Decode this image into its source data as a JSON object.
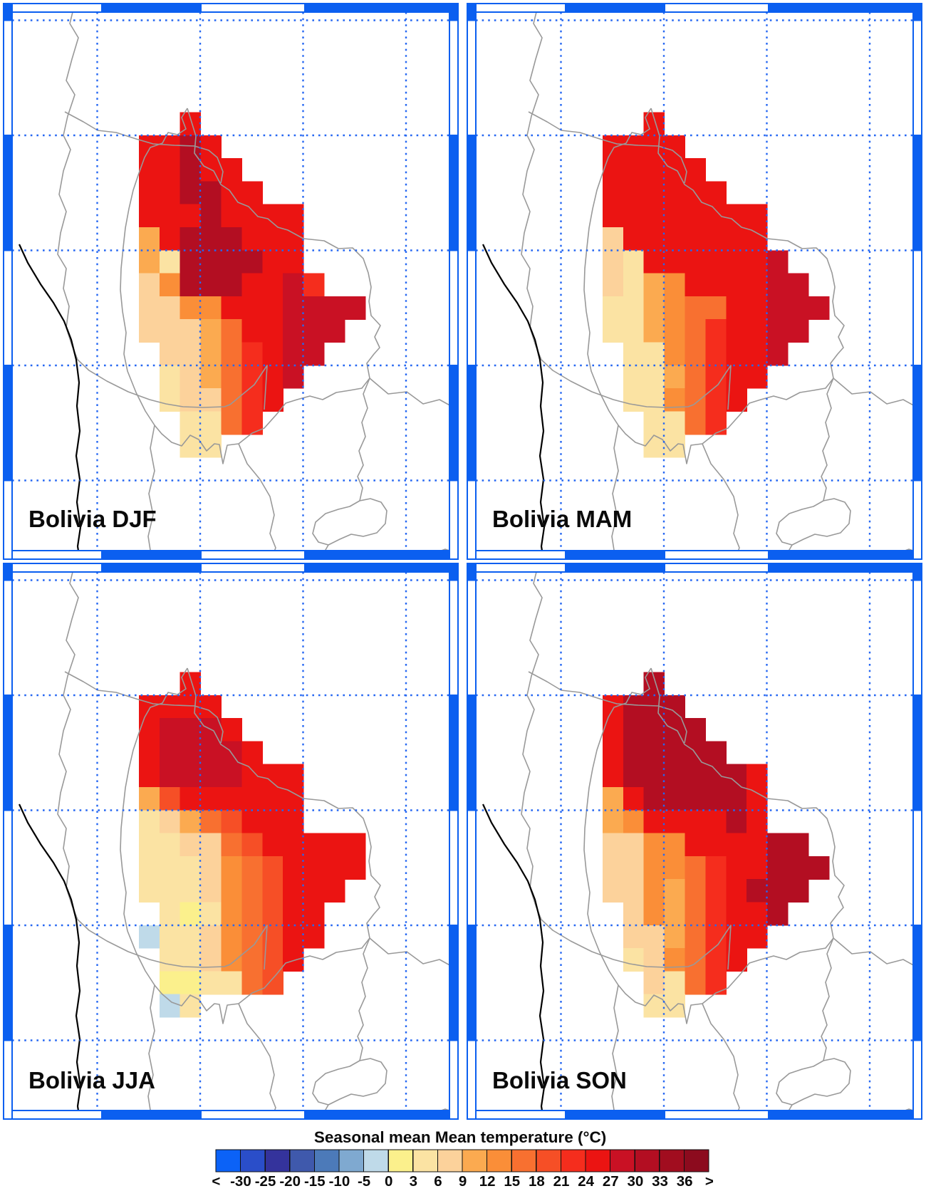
{
  "figure": {
    "colorbar": {
      "title": "Seasonal mean Mean temperature (°C)",
      "tick_labels": [
        "<",
        "-30",
        "-25",
        "-20",
        "-15",
        "-10",
        "-5",
        "0",
        "3",
        "6",
        "9",
        "12",
        "15",
        "18",
        "21",
        "24",
        "27",
        "30",
        "33",
        "36",
        ">"
      ]
    }
  },
  "panels": [
    {
      "id": "bolivia-djf",
      "label": "Bolivia DJF"
    },
    {
      "id": "bolivia-mam",
      "label": "Bolivia MAM"
    },
    {
      "id": "bolivia-jja",
      "label": "Bolivia JJA"
    },
    {
      "id": "bolivia-son",
      "label": "Bolivia SON"
    }
  ],
  "colors": {
    "frame_blue": "#0b5ff0",
    "grid_blue": "#2567f2",
    "border_gray": "#999999",
    "coast_black": "#000000",
    "palette": [
      "#0b62f7",
      "#2a4ec9",
      "#34339c",
      "#3f59ac",
      "#4c7ab9",
      "#7fa9d0",
      "#bfdae9",
      "#fbf08c",
      "#fbe3a3",
      "#fcd29b",
      "#fbaa50",
      "#fa8e38",
      "#f87030",
      "#f64f26",
      "#f52d1d",
      "#eb1412",
      "#c91124",
      "#b30e22",
      "#a10d1f",
      "#8c0b1e"
    ]
  },
  "chart_data": {
    "type": "heatmap",
    "title": "Seasonal mean Mean temperature (°C)",
    "legend_position": "bottom",
    "bin_edges_celsius": [
      -30,
      -25,
      -20,
      -15,
      -10,
      -5,
      0,
      3,
      6,
      9,
      12,
      15,
      18,
      21,
      24,
      27,
      30,
      33,
      36
    ],
    "open_ended": true,
    "cell_code_to_palette_index": {
      "b": 6,
      "y": 7,
      "c": 8,
      "p": 9,
      "l": 10,
      "o": 11,
      "d": 12,
      "v": 13,
      "r": 14,
      "R": 15,
      "C": 16,
      "D": 17,
      "M": 18
    },
    "seasons": [
      {
        "name": "DJF",
        "grid": [
          "...R........",
          ".RRDR.......",
          ".RRDRR......",
          ".RRDDRR.....",
          ".RRRDRRRR...",
          ".lRDDDRRR...",
          ".lcDDDDRR...",
          ".poDDDRRCr..",
          ".ppooRRRCCCC",
          ".pppldRRCCC.",
          "..ppldrRCC..",
          "..cpldrRC...",
          "..cppdrR....",
          "...ccdr.....",
          "...cc......."
        ]
      },
      {
        "name": "MAM",
        "grid": [
          "...R........",
          ".RRRR.......",
          ".RRRRR......",
          ".RRRRRR.....",
          ".RRRRRRRR...",
          ".pRRRRRRR...",
          ".pcRRRRRRC..",
          ".pcloRRRRCC.",
          ".ccloddRRCCC",
          ".cclodrRRCC.",
          "..ccodrRRC..",
          "..ccldrRR...",
          "..ccodrR....",
          "...ccdr.....",
          "...cc......."
        ]
      },
      {
        "name": "JJA",
        "grid": [
          "...R........",
          ".RRRR.......",
          ".RCCCR......",
          ".RCCCCR.....",
          ".RCCCCRRR...",
          ".lvRRRRRR...",
          ".cpldvRRR...",
          ".ccppdvRRRRR",
          ".cccpodvRRRR",
          ".cccpodvRRR.",
          "..cycodvRR..",
          ".bccpodvRR..",
          "..ccpodvR...",
          "..yyccdv....",
          "..bc........"
        ]
      },
      {
        "name": "SON",
        "grid": [
          "...D........",
          ".RDDD.......",
          ".RDDDD......",
          ".RDDDDD.....",
          ".RDDDDDDR...",
          ".lRDDDDDR...",
          ".loRRRRDR...",
          ".ppooRRRRDD.",
          ".ppoodrRRDDD",
          ".ppoldrRDDD.",
          "..poldrRRD..",
          "..ppldrRR...",
          "..cpodrR....",
          "...pcdr.....",
          "...cc......."
        ]
      }
    ]
  }
}
